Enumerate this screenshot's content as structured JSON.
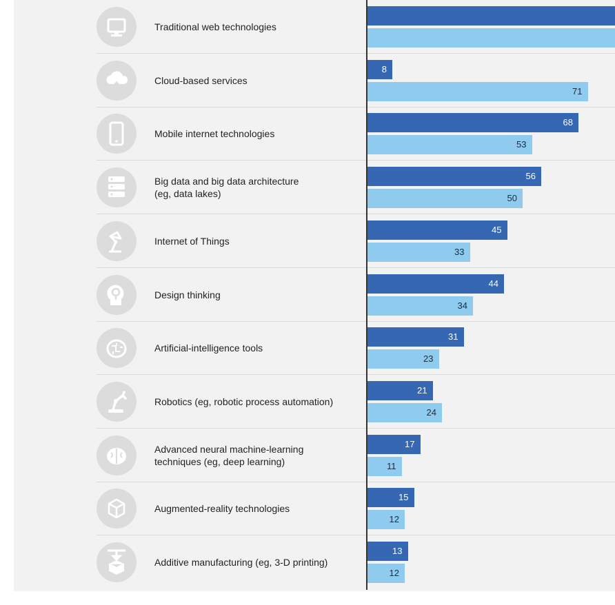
{
  "chart_data": {
    "type": "bar",
    "orientation": "horizontal",
    "categories": [
      [
        "Traditional web technologies"
      ],
      [
        "Cloud-based services"
      ],
      [
        "Mobile internet technologies"
      ],
      [
        "Big data and big data architecture",
        "(eg, data lakes)"
      ],
      [
        "Internet of Things"
      ],
      [
        "Design thinking"
      ],
      [
        "Artificial-intelligence tools"
      ],
      [
        "Robotics (eg, robotic process automation)"
      ],
      [
        "Advanced neural machine-learning",
        "techniques (eg, deep learning)"
      ],
      [
        "Augmented-reality technologies"
      ],
      [
        "Additive manufacturing (eg, 3-D printing)"
      ]
    ],
    "icons": [
      "monitor-icon",
      "cloud-upload-icon",
      "smartphone-icon",
      "server-stack-icon",
      "desk-lamp-icon",
      "lightbulb-head-icon",
      "brain-circuit-icon",
      "robot-arm-icon",
      "brain-icon",
      "cube-wireframe-icon",
      "3d-printer-icon"
    ],
    "series": [
      {
        "values": [
          null,
          8,
          68,
          56,
          45,
          44,
          31,
          21,
          17,
          15,
          13
        ],
        "color": "#3567b2"
      },
      {
        "values": [
          null,
          71,
          53,
          50,
          33,
          34,
          23,
          24,
          11,
          12,
          12
        ],
        "color": "#8ecbee"
      }
    ]
  }
}
